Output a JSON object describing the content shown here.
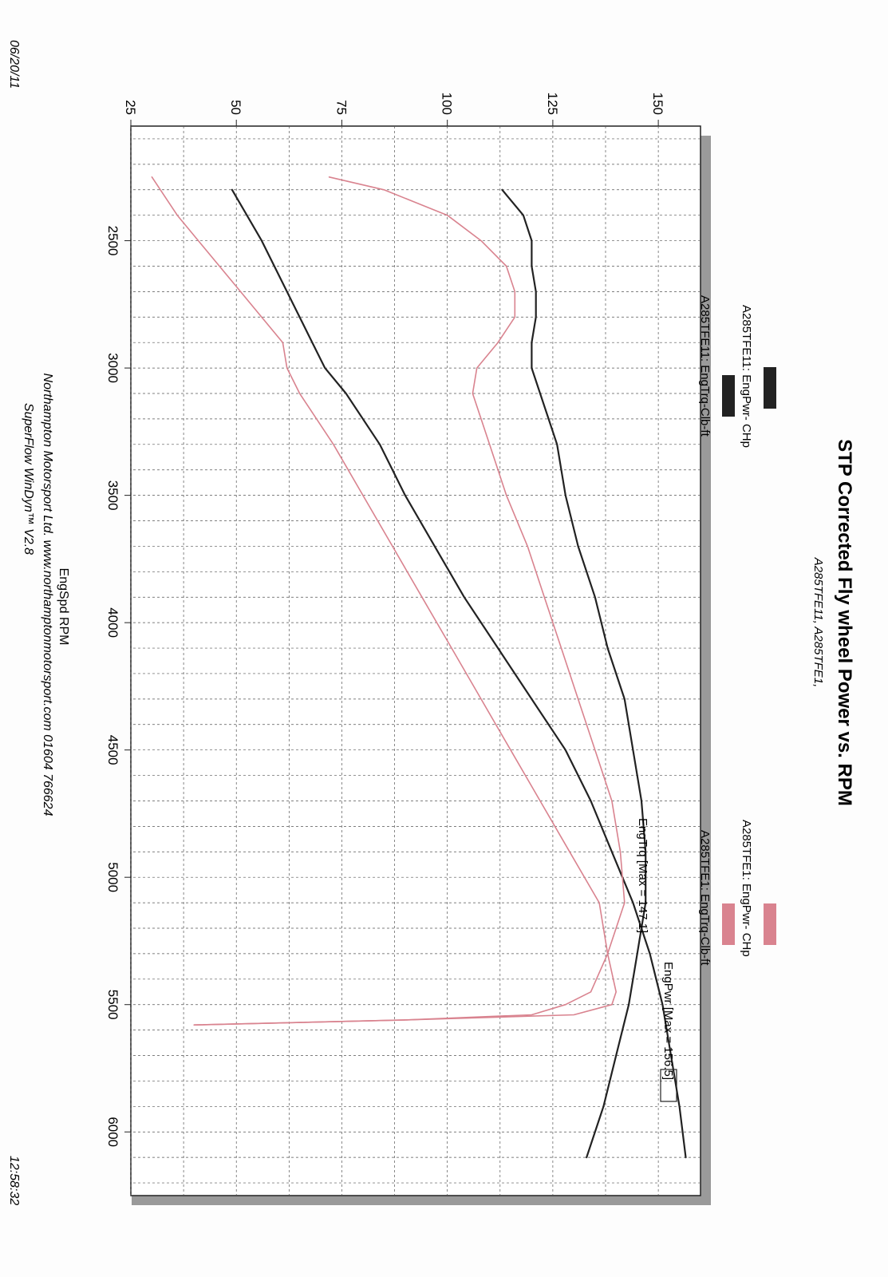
{
  "chart_data": {
    "type": "line",
    "title": "STP Corrected Fly wheel Power vs. RPM",
    "subtitle": "A285TFE11, A285TFE1,",
    "xlabel": "EngSpd  RPM",
    "ylabel": "",
    "xlim": [
      2050,
      6250
    ],
    "ylim": [
      25,
      160
    ],
    "x_ticks": [
      "2500",
      "3000",
      "3500",
      "4000",
      "4500",
      "5000",
      "5500",
      "6000"
    ],
    "y_ticks": [
      "25",
      "50",
      "75",
      "100",
      "125",
      "150"
    ],
    "grid": true,
    "legend_entries": [
      {
        "label": "A285TFE11: EngPwr- CHp",
        "color": "#222222"
      },
      {
        "label": "A285TFE11: EngTrq-Clb-ft",
        "color": "#222222"
      },
      {
        "label": "A285TFE1: EngPwr- CHp",
        "color": "#d9838f"
      },
      {
        "label": "A285TFE1: EngTrq-Clb-ft",
        "color": "#d9838f"
      }
    ],
    "annotations": {
      "trq_max": "EngTrq [Max = 147.1]",
      "pwr_max": "EngPwr [Max = 156.5]"
    },
    "series": [
      {
        "name": "A285TFE11: EngPwr- CHp",
        "color": "#222222",
        "x": [
          2300,
          2500,
          2700,
          2900,
          3000,
          3100,
          3300,
          3500,
          3700,
          3900,
          4100,
          4300,
          4500,
          4700,
          4900,
          5100,
          5300,
          5500,
          5700,
          5900,
          6100
        ],
        "y": [
          49,
          56,
          62,
          68,
          71,
          76,
          84,
          90,
          97,
          104,
          112,
          120,
          128,
          134,
          139,
          144,
          148,
          151,
          153,
          155,
          156.5
        ]
      },
      {
        "name": "A285TFE11: EngTrq-Clb-ft",
        "color": "#222222",
        "x": [
          2300,
          2400,
          2500,
          2600,
          2700,
          2800,
          2900,
          3000,
          3100,
          3200,
          3300,
          3500,
          3700,
          3900,
          4100,
          4300,
          4500,
          4700,
          4900,
          5100,
          5300,
          5500,
          5700,
          5900,
          6100
        ],
        "y": [
          113,
          118,
          120,
          120,
          121,
          121,
          120,
          120,
          122,
          124,
          126,
          128,
          131,
          135,
          138,
          142,
          144,
          146,
          147,
          147,
          145,
          143,
          140,
          137,
          133
        ]
      },
      {
        "name": "A285TFE1: EngPwr- CHp",
        "color": "#d9838f",
        "x": [
          2250,
          2400,
          2500,
          2700,
          2900,
          3000,
          3100,
          3300,
          3500,
          3700,
          3900,
          4100,
          4300,
          4500,
          4700,
          4900,
          5100,
          5300,
          5450,
          5500,
          5540,
          5560,
          5580
        ],
        "y": [
          30,
          36,
          41,
          51,
          61,
          62,
          65,
          73,
          80,
          87,
          94,
          101,
          108,
          115,
          122,
          129,
          136,
          138,
          140,
          139,
          130,
          90,
          40
        ]
      },
      {
        "name": "A285TFE1: EngTrq-Clb-ft",
        "color": "#d9838f",
        "x": [
          2250,
          2300,
          2400,
          2500,
          2600,
          2700,
          2800,
          2900,
          3000,
          3100,
          3200,
          3300,
          3500,
          3700,
          3900,
          4100,
          4300,
          4500,
          4700,
          4900,
          5100,
          5300,
          5450,
          5500,
          5540,
          5560,
          5580
        ],
        "y": [
          72,
          85,
          100,
          108,
          114,
          116,
          116,
          112,
          107,
          106,
          108,
          110,
          114,
          119,
          123,
          127,
          131,
          135,
          139,
          141,
          142,
          138,
          134,
          128,
          120,
          90,
          40
        ]
      }
    ]
  },
  "page": {
    "date": "06/20/11",
    "time": "12:58:32",
    "footer_line1": "Northampton Motorsport Ltd. www.northamptonmotorsport.com 01604 766624",
    "footer_line2": "SuperFlow WinDyn™ V2.8"
  }
}
